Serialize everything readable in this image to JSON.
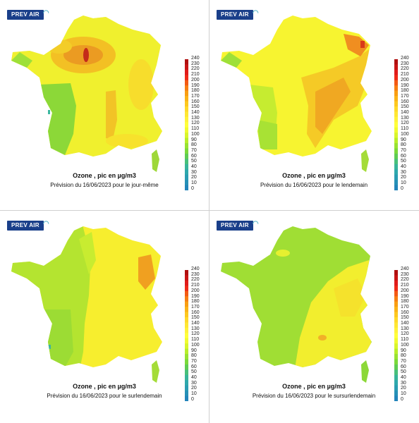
{
  "logo_text": "PREV AIR",
  "colorbar_ticks": [
    "240",
    "230",
    "220",
    "210",
    "200",
    "190",
    "180",
    "170",
    "160",
    "150",
    "140",
    "130",
    "120",
    "110",
    "100",
    "90",
    "80",
    "70",
    "60",
    "50",
    "40",
    "30",
    "20",
    "10",
    "0"
  ],
  "colorbar_colors": [
    "#b01010",
    "#c81414",
    "#e01b1b",
    "#ef2a18",
    "#f35a14",
    "#f77e12",
    "#f99e12",
    "#fbb317",
    "#fdc81f",
    "#ffd92a",
    "#ffe733",
    "#fff23a",
    "#ffff3a",
    "#f0fb30",
    "#d8f52c",
    "#b8ee2a",
    "#98e232",
    "#7ad93a",
    "#5ecc52",
    "#48c07a",
    "#38b49a",
    "#2ea8ac",
    "#2a9cb2",
    "#2690b6",
    "#2284ba"
  ],
  "panels": [
    {
      "title": "Ozone , pic en µg/m3",
      "subtitle": "Prévision du 16/06/2023 pour le jour-même"
    },
    {
      "title": "Ozone , pic en µg/m3",
      "subtitle": "Prévision du 16/06/2023 pour le lendemain"
    },
    {
      "title": "Ozone , pic en µg/m3",
      "subtitle": "Prévision du 16/06/2023 pour le surlendemain"
    },
    {
      "title": "Ozone , pic en µg/m3",
      "subtitle": "Prévision du 16/06/2023 pour le sursurlendemain"
    }
  ]
}
